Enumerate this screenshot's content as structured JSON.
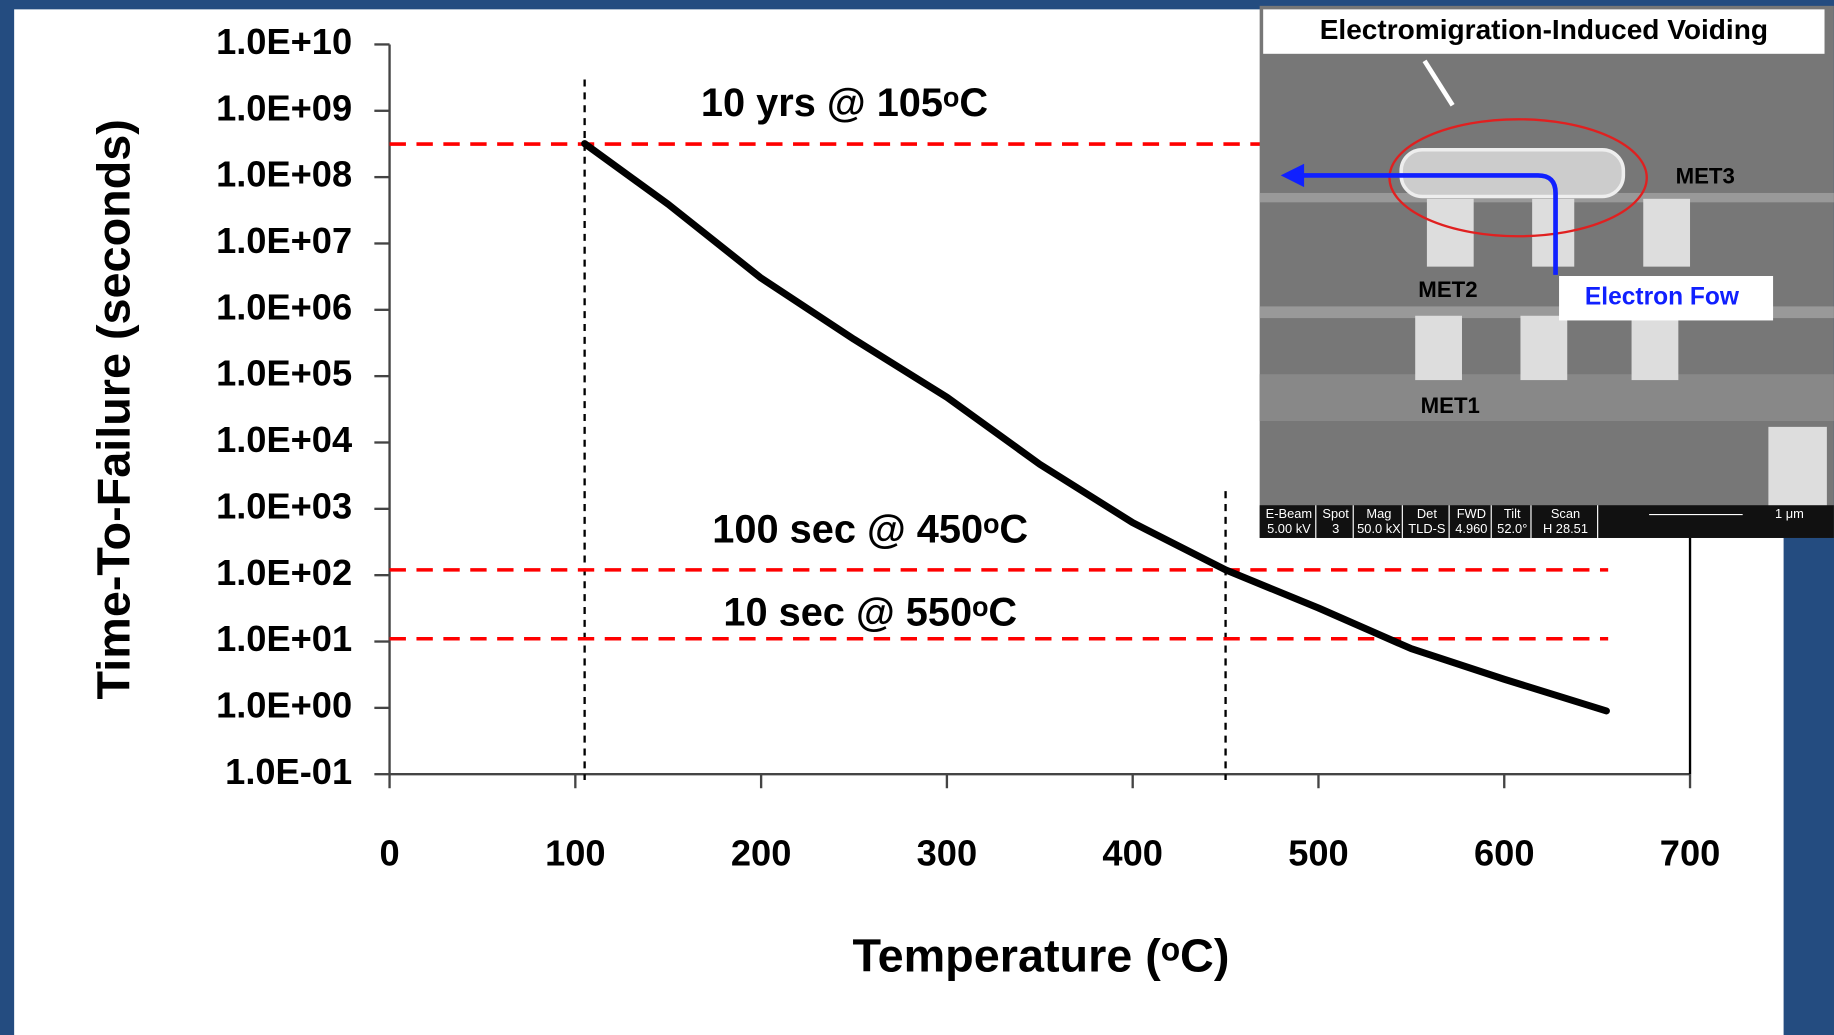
{
  "chart_data": {
    "type": "line",
    "y_label": "Time-To-Failure  (seconds)",
    "x_label": "Temperature (ᵒC)",
    "x": [
      105,
      150,
      200,
      250,
      300,
      350,
      400,
      450,
      500,
      550,
      600,
      655
    ],
    "values": [
      320000000,
      39000000,
      3000000,
      360000,
      48000,
      4700,
      620,
      120,
      32,
      7.8,
      2.7,
      0.9
    ],
    "color": "#000000",
    "log_y": true,
    "xlim": [
      0,
      700
    ],
    "xticks": [
      0,
      100,
      200,
      300,
      400,
      500,
      600,
      700
    ],
    "ylim": [
      0.1,
      10000000000
    ],
    "yticks": [
      {
        "value": 0.1,
        "label": "1.0E-01"
      },
      {
        "value": 1,
        "label": "1.0E+00"
      },
      {
        "value": 10,
        "label": "1.0E+01"
      },
      {
        "value": 100,
        "label": "1.0E+02"
      },
      {
        "value": 1000,
        "label": "1.0E+03"
      },
      {
        "value": 10000,
        "label": "1.0E+04"
      },
      {
        "value": 100000,
        "label": "1.0E+05"
      },
      {
        "value": 1000000,
        "label": "1.0E+06"
      },
      {
        "value": 10000000,
        "label": "1.0E+07"
      },
      {
        "value": 100000000,
        "label": "1.0E+08"
      },
      {
        "value": 1000000000,
        "label": "1.0E+09"
      },
      {
        "value": 10000000000,
        "label": "1.0E+10"
      }
    ],
    "hlines": [
      {
        "value": 315000000,
        "label": "10 yrs @ 105ᵒC"
      },
      {
        "value": 120,
        "label": "100 sec @ 450ᵒC"
      },
      {
        "value": 11,
        "label": "10 sec @ 550ᵒC"
      }
    ],
    "hline_color": "#ff0000",
    "vlines": [
      105,
      450
    ],
    "inset": {
      "title": "Electromigration-Induced Voiding",
      "layers": [
        "MET3",
        "MET2",
        "MET1"
      ],
      "flow_label": "Electron Fow",
      "footer": [
        [
          "E-Beam",
          "5.00 kV"
        ],
        [
          "Spot",
          "3"
        ],
        [
          "Mag",
          "50.0 kX"
        ],
        [
          "Det",
          "TLD-S"
        ],
        [
          "FWD",
          "4.960"
        ],
        [
          "Tilt",
          "52.0°"
        ],
        [
          "Scan",
          "H 28.51"
        ]
      ],
      "scale": "1 μm"
    }
  }
}
